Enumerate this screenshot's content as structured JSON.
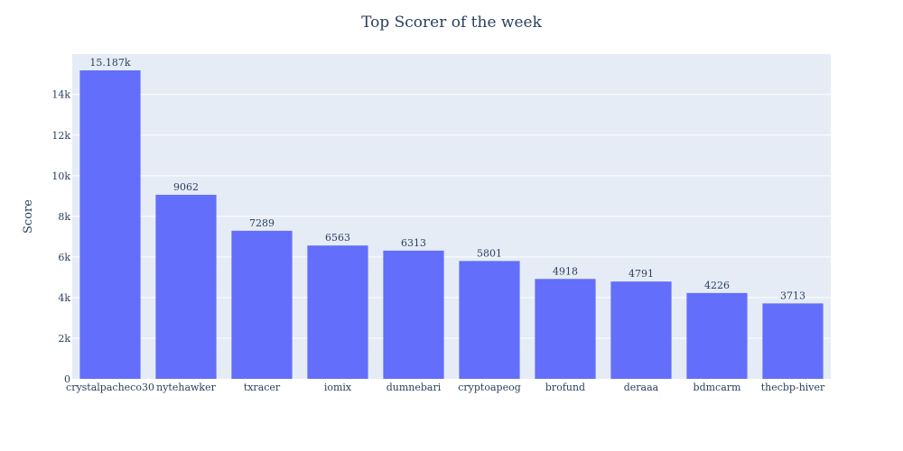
{
  "chart_data": {
    "type": "bar",
    "title": "Top Scorer of the week",
    "xlabel": "",
    "ylabel": "Score",
    "categories": [
      "crystalpacheco30",
      "nytehawker",
      "txracer",
      "iomix",
      "dumnebari",
      "cryptoapeog",
      "brofund",
      "deraaa",
      "bdmcarm",
      "thecbp-hiver"
    ],
    "values": [
      15187,
      9062,
      7289,
      6563,
      6313,
      5801,
      4918,
      4791,
      4226,
      3713
    ],
    "data_labels": [
      "15.187k",
      "9062",
      "7289",
      "6563",
      "6313",
      "5801",
      "4918",
      "4791",
      "4226",
      "3713"
    ],
    "ylim": [
      0,
      15987
    ],
    "yticks": [
      0,
      2000,
      4000,
      6000,
      8000,
      10000,
      12000,
      14000
    ],
    "ytick_labels": [
      "0",
      "2k",
      "4k",
      "6k",
      "8k",
      "10k",
      "12k",
      "14k"
    ],
    "grid": true,
    "colors": {
      "bar": "#636efa",
      "plot_bg": "#e5ecf6",
      "grid": "#ffffff",
      "text": "#2a3f5f"
    }
  }
}
